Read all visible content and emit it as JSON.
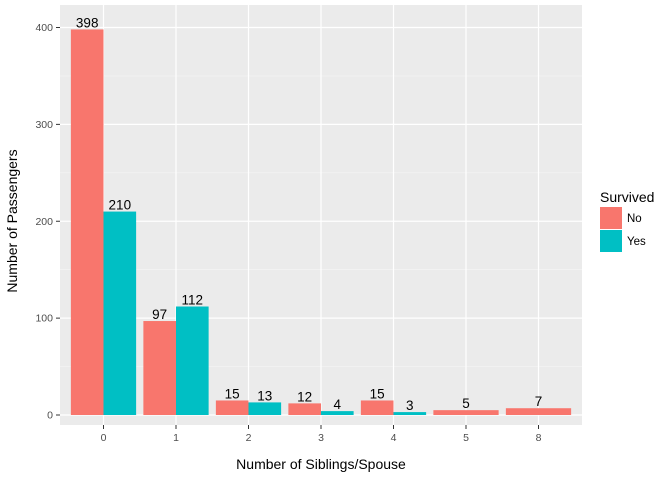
{
  "chart_data": {
    "type": "bar",
    "categories": [
      "0",
      "1",
      "2",
      "3",
      "4",
      "5",
      "8"
    ],
    "series": [
      {
        "name": "No",
        "color": "#F8766D",
        "values": [
          398,
          97,
          15,
          12,
          15,
          5,
          7
        ]
      },
      {
        "name": "Yes",
        "color": "#00BFC4",
        "values": [
          210,
          112,
          13,
          4,
          3,
          null,
          null
        ]
      }
    ],
    "xlabel": "Number of Siblings/Spouse",
    "ylabel": "Number of Passengers",
    "ylim": [
      0,
      400
    ],
    "yticks": [
      0,
      100,
      200,
      300,
      400
    ],
    "legend": {
      "title": "Survived",
      "placement": "right"
    },
    "grid": true,
    "background": "#EBEBEB"
  }
}
